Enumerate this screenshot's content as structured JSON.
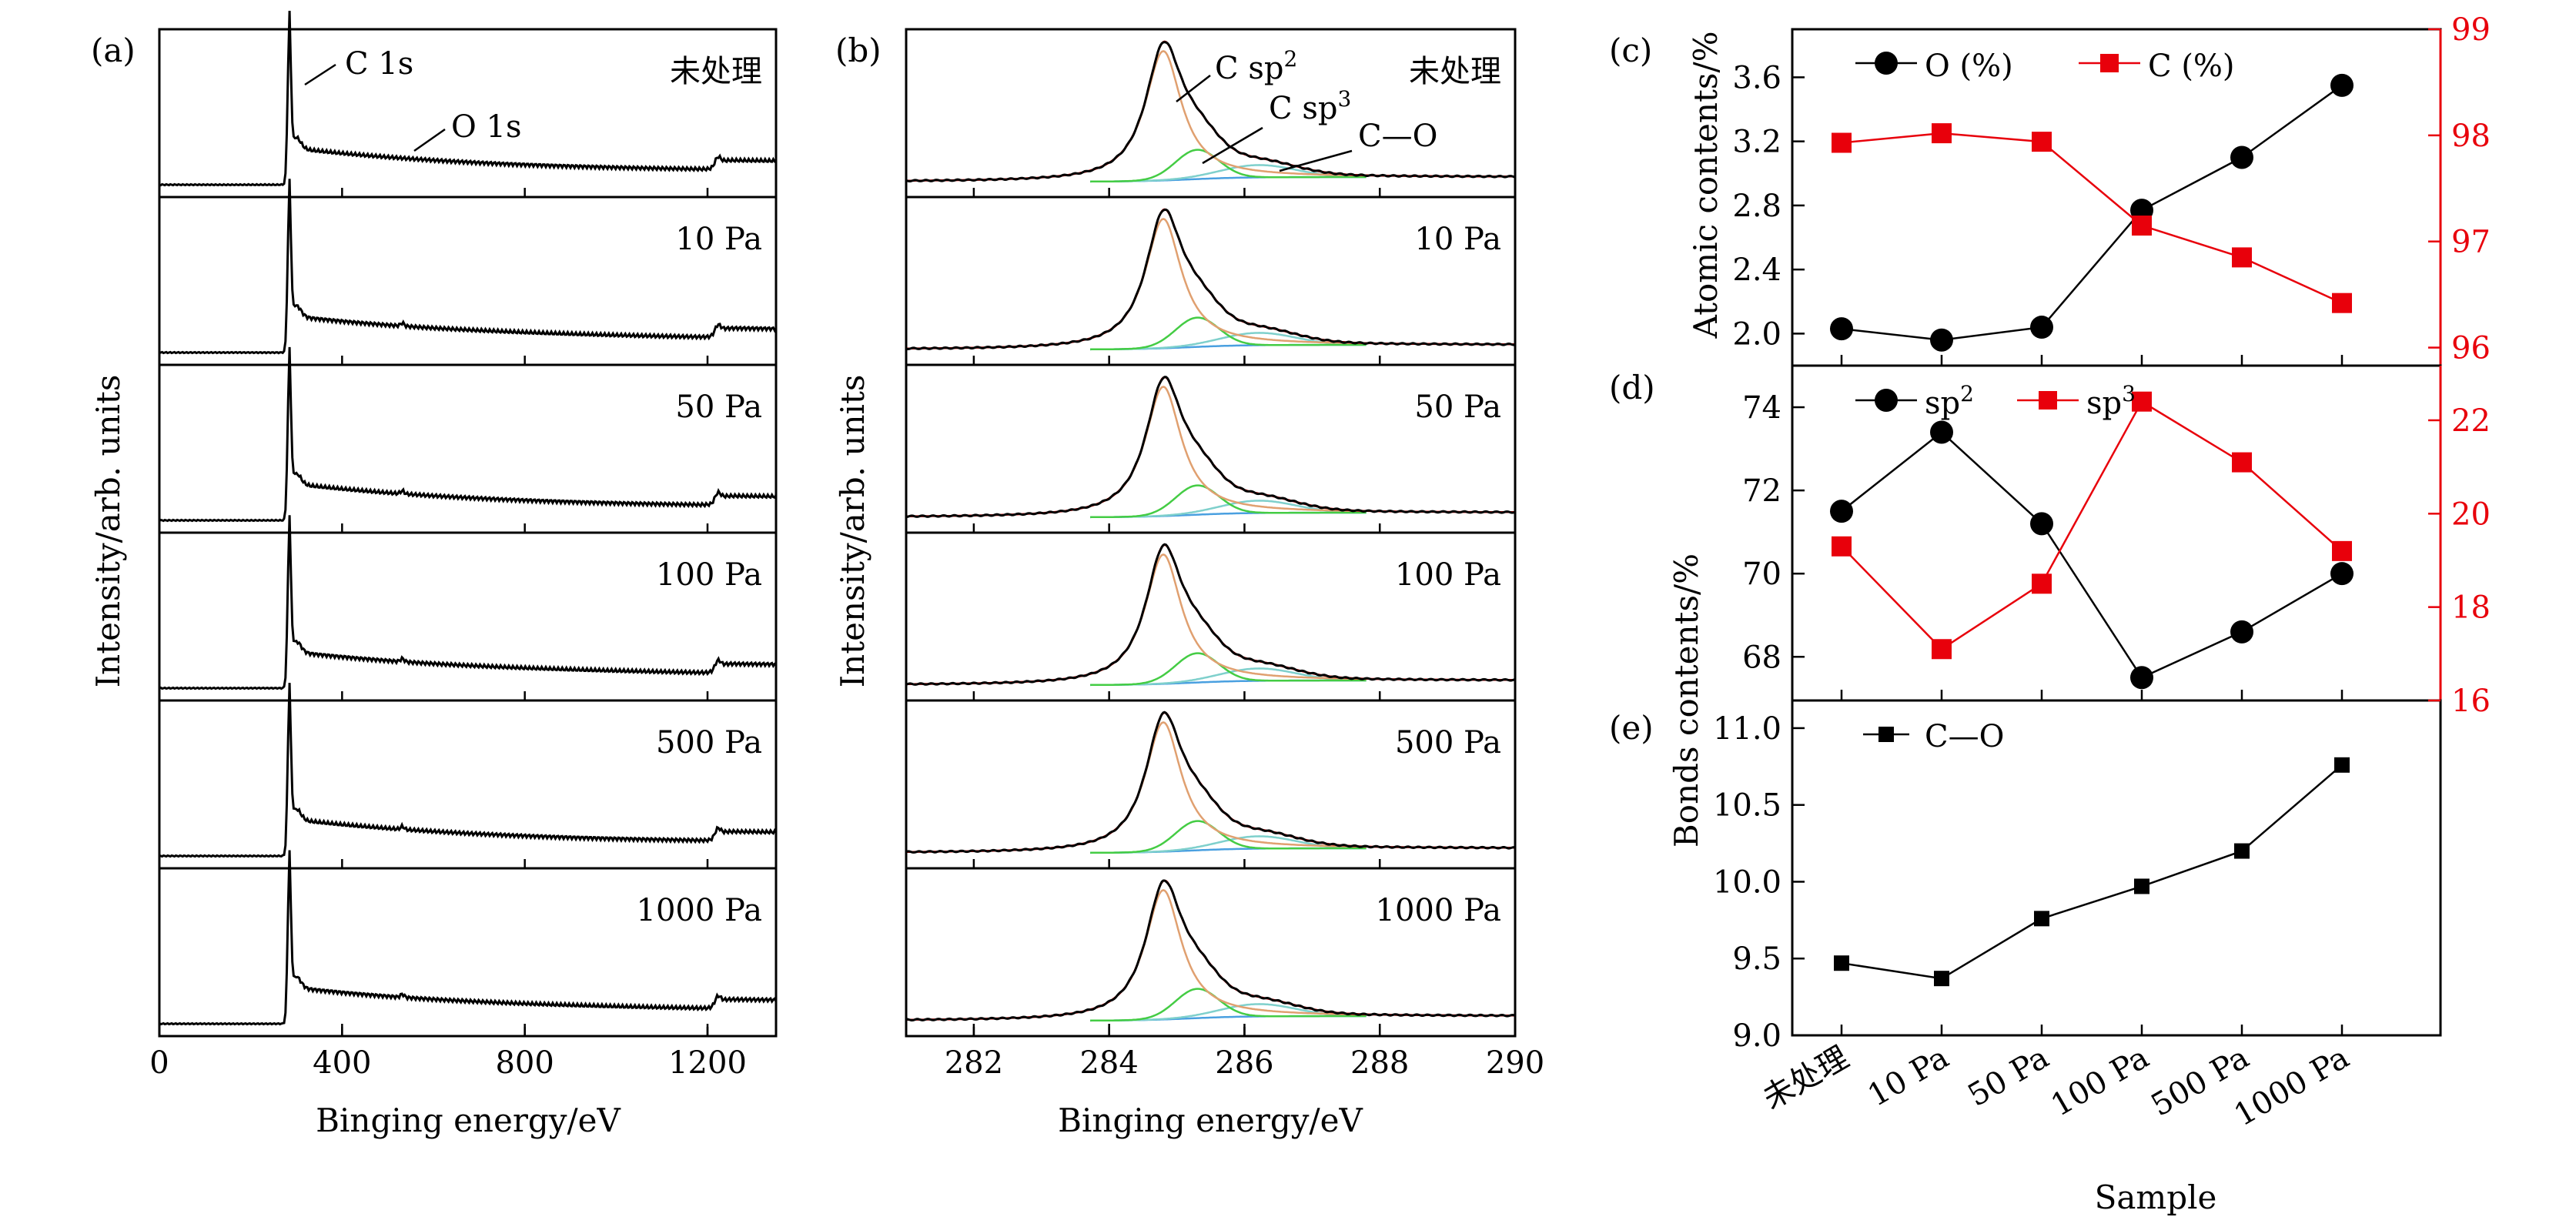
{
  "chart_data": [
    {
      "id": "a",
      "panel_label": "(a)",
      "type": "line",
      "xlabel": "Binging energy/eV",
      "ylabel": "Intensity/arb. units",
      "xlim": [
        0,
        1350
      ],
      "xticks": [
        0,
        400,
        800,
        1200
      ],
      "xtick_labels": [
        "0",
        "400",
        "800",
        "1200"
      ],
      "sample_labels": [
        "未处理",
        "10 Pa",
        "50 Pa",
        "100 Pa",
        "500 Pa",
        "1000 Pa"
      ],
      "annotations": [
        "C 1s",
        "O 1s"
      ],
      "series_color": "#000000"
    },
    {
      "id": "b",
      "panel_label": "(b)",
      "type": "line",
      "xlabel": "Binging energy/eV",
      "ylabel": "Intensity/arb. units",
      "xlim": [
        281,
        290
      ],
      "xticks": [
        282,
        284,
        286,
        288,
        290
      ],
      "xtick_labels": [
        "282",
        "284",
        "286",
        "288",
        "290"
      ],
      "sample_labels": [
        "未处理",
        "10 Pa",
        "50 Pa",
        "100 Pa",
        "500 Pa",
        "1000 Pa"
      ],
      "annotations": [
        "C sp",
        "2",
        "C sp",
        "3",
        "C—O"
      ],
      "component_colors": {
        "envelope": "#000000",
        "fit": "#cc0000",
        "sp2": "#e0a070",
        "sp3": "#44cc44",
        "co": "#7fd0cc",
        "background": "#4aa0e0"
      },
      "peak_centers_eV": {
        "sp2": 284.8,
        "sp3": 285.3,
        "co": 286.2
      }
    },
    {
      "id": "c",
      "panel_label": "(c)",
      "type": "line",
      "categories": [
        "未处理",
        "10 Pa",
        "50 Pa",
        "100 Pa",
        "500 Pa",
        "1000 Pa"
      ],
      "ylabel": "Atomic contents/%",
      "ylim_left": [
        1.8,
        3.9
      ],
      "yticks_left": [
        "2.0",
        "2.4",
        "2.8",
        "3.2",
        "3.6"
      ],
      "ylim_right": [
        95.83,
        99
      ],
      "yticks_right": [
        "96",
        "97",
        "98",
        "99"
      ],
      "legend_position": "top-left",
      "series": [
        {
          "name": "O (%)",
          "axis": "left",
          "marker": "circle",
          "color": "#000000",
          "values": [
            2.03,
            1.96,
            2.04,
            2.77,
            3.1,
            3.55
          ]
        },
        {
          "name": "C (%)",
          "axis": "right",
          "marker": "square",
          "color": "#e8000b",
          "values": [
            97.93,
            98.02,
            97.94,
            97.15,
            96.85,
            96.42
          ]
        }
      ]
    },
    {
      "id": "d",
      "panel_label": "(d)",
      "type": "line",
      "categories": [
        "未处理",
        "10 Pa",
        "50 Pa",
        "100 Pa",
        "500 Pa",
        "1000 Pa"
      ],
      "ylim_left": [
        66.95,
        75.0
      ],
      "yticks_left": [
        "68",
        "70",
        "72",
        "74"
      ],
      "ylim_right": [
        16,
        23.17
      ],
      "yticks_right": [
        "16",
        "18",
        "20",
        "22"
      ],
      "legend_position": "top-left",
      "series": [
        {
          "name": "sp",
          "sup": "2",
          "axis": "left",
          "marker": "circle",
          "color": "#000000",
          "values": [
            71.5,
            73.4,
            71.2,
            67.5,
            68.6,
            70.0
          ]
        },
        {
          "name": "sp",
          "sup": "3",
          "axis": "right",
          "marker": "square",
          "color": "#e8000b",
          "values": [
            19.3,
            17.1,
            18.5,
            22.4,
            21.1,
            19.2
          ]
        }
      ]
    },
    {
      "id": "e",
      "panel_label": "(e)",
      "type": "line",
      "categories": [
        "未处理",
        "10 Pa",
        "50 Pa",
        "100 Pa",
        "500 Pa",
        "1000 Pa"
      ],
      "xlabel": "Sample",
      "ylabel": "Bonds contents/%",
      "ylim": [
        9.0,
        11.18
      ],
      "yticks": [
        "9.0",
        "9.5",
        "10.0",
        "10.5",
        "11.0"
      ],
      "legend_position": "top-left",
      "series": [
        {
          "name": "C—O",
          "axis": "left",
          "marker": "square",
          "color": "#000000",
          "values": [
            9.47,
            9.37,
            9.76,
            9.97,
            10.2,
            10.76
          ]
        }
      ]
    }
  ]
}
